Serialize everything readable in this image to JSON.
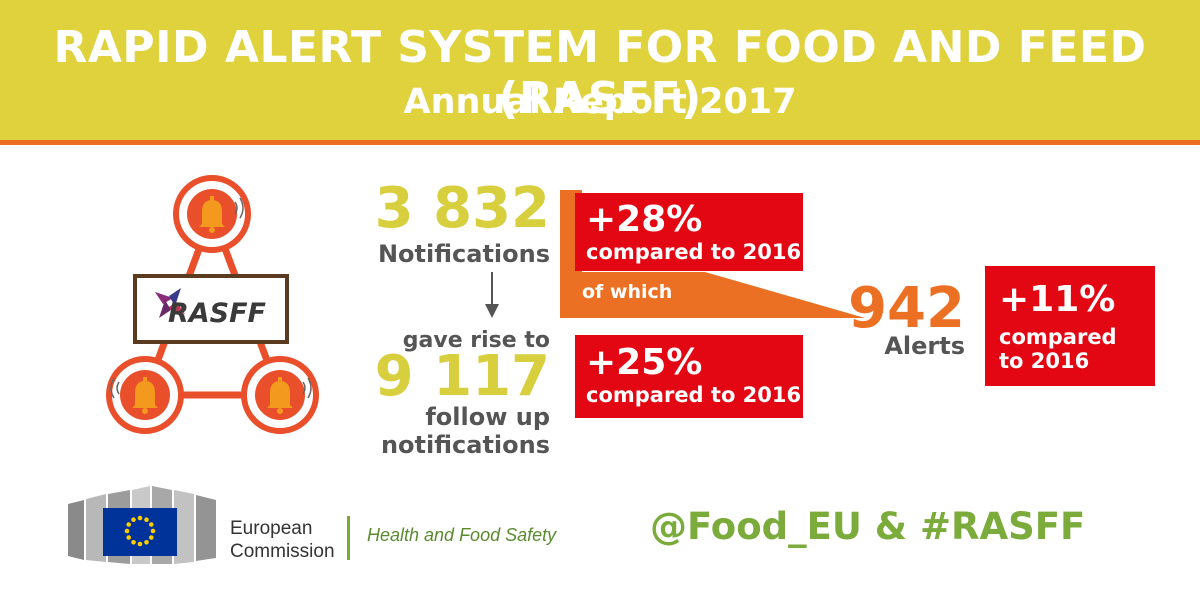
{
  "header": {
    "title": "RAPID ALERT SYSTEM FOR FOOD AND FEED (RASFF)",
    "subtitle": "Annual Report 2017"
  },
  "logo": {
    "label": "RASFF",
    "icons": [
      "bell-icon",
      "bell-icon",
      "bell-icon"
    ]
  },
  "notifications": {
    "value": "3 832",
    "label": "Notifications",
    "change": "+28%",
    "change_label": "compared to 2016",
    "connector": "of which"
  },
  "followups": {
    "intro": "gave rise to",
    "value": "9 117",
    "label_line1": "follow up",
    "label_line2": "notifications",
    "change": "+25%",
    "change_label": "compared to 2016"
  },
  "alerts": {
    "value": "942",
    "label": "Alerts",
    "change": "+11%",
    "change_label_line1": "compared",
    "change_label_line2": "to 2016"
  },
  "footer": {
    "org_line1": "European",
    "org_line2": "Commission",
    "department": "Health and Food Safety",
    "hashtag": "@Food_EU & #RASFF"
  },
  "colors": {
    "header_bg": "#dfd23c",
    "accent_orange": "#ec7023",
    "alert_red": "#e30613",
    "number_yellow": "#d7cf3d",
    "text_gray": "#555555",
    "footer_green": "#7bab3a",
    "eu_blue": "#003399",
    "eu_star": "#ffcc00"
  }
}
